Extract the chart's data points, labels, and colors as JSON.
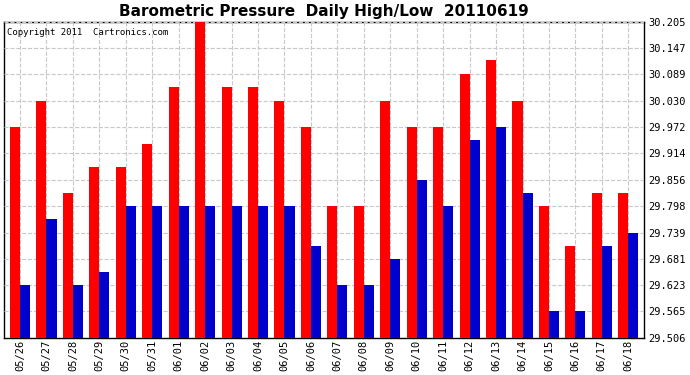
{
  "title": "Barometric Pressure  Daily High/Low  20110619",
  "copyright": "Copyright 2011  Cartronics.com",
  "categories": [
    "05/26",
    "05/27",
    "05/28",
    "05/29",
    "05/30",
    "05/31",
    "06/01",
    "06/02",
    "06/03",
    "06/04",
    "06/05",
    "06/06",
    "06/07",
    "06/08",
    "06/09",
    "06/10",
    "06/11",
    "06/12",
    "06/13",
    "06/14",
    "06/15",
    "06/16",
    "06/17",
    "06/18"
  ],
  "highs": [
    29.972,
    30.03,
    29.827,
    29.885,
    29.885,
    29.935,
    30.06,
    30.205,
    30.06,
    30.06,
    30.03,
    29.972,
    29.798,
    29.798,
    30.03,
    29.972,
    29.972,
    30.089,
    30.12,
    30.03,
    29.798,
    29.71,
    29.827,
    29.827
  ],
  "lows": [
    29.623,
    29.769,
    29.623,
    29.652,
    29.798,
    29.798,
    29.798,
    29.798,
    29.798,
    29.798,
    29.798,
    29.71,
    29.623,
    29.623,
    29.681,
    29.856,
    29.798,
    29.943,
    29.972,
    29.827,
    29.565,
    29.565,
    29.71,
    29.739
  ],
  "high_color": "#ff0000",
  "low_color": "#0000cc",
  "bg_color": "#ffffff",
  "plot_bg_color": "#ffffff",
  "grid_color": "#c8c8c8",
  "ylim_min": 29.506,
  "ylim_max": 30.205,
  "yticks": [
    29.506,
    29.565,
    29.623,
    29.681,
    29.739,
    29.798,
    29.856,
    29.914,
    29.972,
    30.03,
    30.089,
    30.147,
    30.205
  ],
  "title_fontsize": 11,
  "tick_fontsize": 7.5,
  "copyright_fontsize": 6.5,
  "bar_width": 0.38,
  "fig_width": 6.9,
  "fig_height": 3.75
}
